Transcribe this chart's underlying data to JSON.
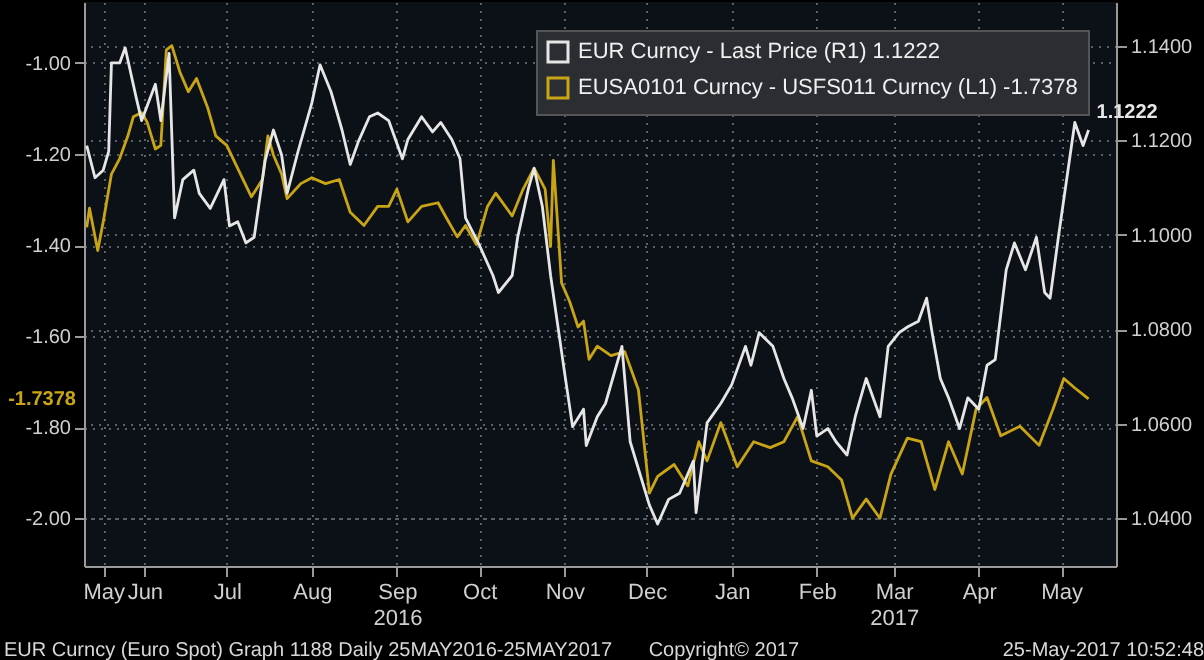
{
  "chart_data": {
    "type": "line",
    "annotations": [
      "EUR Curncy (Euro Spot) Graph 1188  Daily 25MAY2016-25MAY2017",
      "Copyright© 2017",
      "25-May-2017 10:52:48",
      "-1.7378"
    ],
    "xlim": [
      "2016-05-24",
      "2017-06-04"
    ],
    "xticks": [
      {
        "value": "2016-05-31",
        "label": "May"
      },
      {
        "value": "2016-06-15",
        "label": "Jun"
      },
      {
        "value": "2016-07-15",
        "label": "Jul"
      },
      {
        "value": "2016-08-15",
        "label": "Aug"
      },
      {
        "value": "2016-09-15",
        "label": "Sep\n2016"
      },
      {
        "value": "2016-10-15",
        "label": "Oct"
      },
      {
        "value": "2016-11-15",
        "label": "Nov"
      },
      {
        "value": "2016-12-15",
        "label": "Dec"
      },
      {
        "value": "2017-01-15",
        "label": "Jan"
      },
      {
        "value": "2017-02-15",
        "label": "Feb"
      },
      {
        "value": "2017-03-15",
        "label": "Mar\n2017"
      },
      {
        "value": "2017-04-15",
        "label": "Apr"
      },
      {
        "value": "2017-05-15",
        "label": "May"
      }
    ],
    "ylim": [
      -2.105,
      -0.866
    ],
    "yticks": [
      {
        "value": -1.0,
        "label": "-1.00"
      },
      {
        "value": -1.2,
        "label": "-1.20"
      },
      {
        "value": -1.4,
        "label": "-1.40"
      },
      {
        "value": -1.6,
        "label": "-1.60"
      },
      {
        "value": -1.8,
        "label": "-1.80"
      },
      {
        "value": -2.0,
        "label": "-2.00"
      }
    ],
    "y2lim": [
      1.0299,
      1.1493
    ],
    "y2ticks": [
      {
        "value": 1.14,
        "label": "1.1400"
      },
      {
        "value": 1.12,
        "label": "1.1200"
      },
      {
        "value": 1.1,
        "label": "1.1000"
      },
      {
        "value": 1.08,
        "label": "1.0800"
      },
      {
        "value": 1.06,
        "label": "1.0600"
      },
      {
        "value": 1.04,
        "label": "1.0400"
      }
    ],
    "grid": true,
    "legend": "top right",
    "line_style": "solid",
    "marker": "none",
    "series": [
      {
        "name": "EUR Curncy - Last Price (R1)  1.1222",
        "color": "#e6e6e6",
        "axis": "y2",
        "x": [
          "2016-05-25",
          "2016-05-28",
          "2016-05-31",
          "2016-06-02",
          "2016-06-03",
          "2016-06-06",
          "2016-06-08",
          "2016-06-12",
          "2016-06-14",
          "2016-06-19",
          "2016-06-21",
          "2016-06-24",
          "2016-06-26",
          "2016-06-29",
          "2016-07-03",
          "2016-07-05",
          "2016-07-09",
          "2016-07-14",
          "2016-07-16",
          "2016-07-19",
          "2016-07-22",
          "2016-07-25",
          "2016-07-29",
          "2016-08-01",
          "2016-08-04",
          "2016-08-06",
          "2016-08-10",
          "2016-08-15",
          "2016-08-18",
          "2016-08-22",
          "2016-08-26",
          "2016-08-29",
          "2016-09-01",
          "2016-09-05",
          "2016-09-08",
          "2016-09-12",
          "2016-09-17",
          "2016-09-19",
          "2016-09-24",
          "2016-09-28",
          "2016-10-01",
          "2016-10-05",
          "2016-10-08",
          "2016-10-10",
          "2016-10-15",
          "2016-10-20",
          "2016-10-22",
          "2016-10-27",
          "2016-10-29",
          "2016-11-02",
          "2016-11-04",
          "2016-11-07",
          "2016-11-10",
          "2016-11-15",
          "2016-11-18",
          "2016-11-22",
          "2016-11-23",
          "2016-11-27",
          "2016-11-30",
          "2016-12-06",
          "2016-12-09",
          "2016-12-16",
          "2016-12-19",
          "2016-12-23",
          "2016-12-27",
          "2017-01-01",
          "2017-01-02",
          "2017-01-06",
          "2017-01-11",
          "2017-01-15",
          "2017-01-20",
          "2017-01-22",
          "2017-01-25",
          "2017-01-30",
          "2017-02-03",
          "2017-02-06",
          "2017-02-10",
          "2017-02-13",
          "2017-02-15",
          "2017-02-19",
          "2017-02-22",
          "2017-02-26",
          "2017-03-01",
          "2017-03-05",
          "2017-03-10",
          "2017-03-13",
          "2017-03-17",
          "2017-03-20",
          "2017-03-24",
          "2017-03-27",
          "2017-03-29",
          "2017-04-01",
          "2017-04-04",
          "2017-04-08",
          "2017-04-11",
          "2017-04-15",
          "2017-04-18",
          "2017-04-21",
          "2017-04-25",
          "2017-04-28",
          "2017-05-02",
          "2017-05-06",
          "2017-05-09",
          "2017-05-11",
          "2017-05-14",
          "2017-05-18",
          "2017-05-20",
          "2017-05-23",
          "2017-05-25"
        ],
        "values": [
          1.1189,
          1.1121,
          1.1137,
          1.1177,
          1.1364,
          1.1364,
          1.1396,
          1.1291,
          1.1242,
          1.1319,
          1.1242,
          1.1384,
          1.1036,
          1.1117,
          1.1137,
          1.1088,
          1.1056,
          1.1117,
          1.1019,
          1.1028,
          1.0983,
          1.0995,
          1.1157,
          1.1222,
          1.1169,
          1.1088,
          1.1177,
          1.1279,
          1.136,
          1.1303,
          1.1222,
          1.1149,
          1.1198,
          1.125,
          1.1258,
          1.1242,
          1.1161,
          1.1202,
          1.125,
          1.1218,
          1.1238,
          1.1202,
          1.1161,
          1.1036,
          1.0979,
          1.0914,
          1.0878,
          1.0914,
          1.0995,
          1.11,
          1.1141,
          1.106,
          1.0914,
          1.0712,
          1.0594,
          1.0631,
          1.0554,
          1.0615,
          1.0643,
          1.0764,
          1.0562,
          1.0428,
          1.0388,
          1.044,
          1.0453,
          1.0521,
          1.0412,
          1.0602,
          1.0643,
          1.0683,
          1.0764,
          1.0724,
          1.0793,
          1.0764,
          1.0696,
          1.0655,
          1.059,
          1.0671,
          1.0574,
          1.059,
          1.0562,
          1.0534,
          1.0615,
          1.0696,
          1.0615,
          1.0764,
          1.0793,
          1.0805,
          1.0817,
          1.0866,
          1.0793,
          1.0696,
          1.0655,
          1.059,
          1.0655,
          1.0631,
          1.0724,
          1.0736,
          1.0926,
          1.0983,
          1.0926,
          1.0995,
          1.0878,
          1.0866,
          1.0995,
          1.1157,
          1.1238,
          1.1189,
          1.1222
        ],
        "value_labels": [
          null,
          null,
          null,
          null,
          null,
          null,
          null,
          null,
          null,
          null,
          null,
          null,
          null,
          null,
          null,
          null,
          null,
          null,
          null,
          null,
          null,
          null,
          null,
          null,
          null,
          null,
          null,
          null,
          null,
          null,
          null,
          null,
          null,
          null,
          null,
          null,
          null,
          null,
          null,
          null,
          null,
          null,
          null,
          null,
          null,
          null,
          null,
          null,
          null,
          null,
          null,
          null,
          null,
          null,
          null,
          null,
          null,
          null,
          null,
          null,
          null,
          null,
          null,
          null,
          null,
          null,
          null,
          null,
          null,
          null,
          null,
          null,
          null,
          null,
          null,
          null,
          null,
          null,
          null,
          null,
          null,
          null,
          null,
          null,
          null,
          null,
          null,
          null,
          null,
          null,
          null,
          null,
          null,
          null,
          null,
          null,
          null,
          null,
          null,
          null,
          null,
          null,
          null,
          null,
          null,
          null,
          null,
          null,
          "1.1222"
        ]
      },
      {
        "name": "EUSA0101 Curncy - USFS011 Curncy (L1) -1.7378",
        "color": "#c9a516",
        "axis": "y",
        "x": [
          "2016-05-25",
          "2016-05-26",
          "2016-05-29",
          "2016-05-31",
          "2016-06-03",
          "2016-06-06",
          "2016-06-09",
          "2016-06-11",
          "2016-06-14",
          "2016-06-16",
          "2016-06-19",
          "2016-06-21",
          "2016-06-23",
          "2016-06-25",
          "2016-06-28",
          "2016-07-01",
          "2016-07-04",
          "2016-07-08",
          "2016-07-11",
          "2016-07-15",
          "2016-07-20",
          "2016-07-24",
          "2016-07-28",
          "2016-07-30",
          "2016-08-01",
          "2016-08-04",
          "2016-08-06",
          "2016-08-11",
          "2016-08-15",
          "2016-08-20",
          "2016-08-25",
          "2016-08-29",
          "2016-09-03",
          "2016-09-08",
          "2016-09-12",
          "2016-09-15",
          "2016-09-19",
          "2016-09-24",
          "2016-09-30",
          "2016-10-03",
          "2016-10-07",
          "2016-10-10",
          "2016-10-14",
          "2016-10-18",
          "2016-10-21",
          "2016-10-27",
          "2016-10-31",
          "2016-11-04",
          "2016-11-08",
          "2016-11-10",
          "2016-11-11",
          "2016-11-14",
          "2016-11-17",
          "2016-11-20",
          "2016-11-22",
          "2016-11-24",
          "2016-11-27",
          "2016-12-02",
          "2016-12-07",
          "2016-12-12",
          "2016-12-16",
          "2016-12-19",
          "2016-12-25",
          "2016-12-30",
          "2017-01-03",
          "2017-01-06",
          "2017-01-11",
          "2017-01-17",
          "2017-01-23",
          "2017-01-29",
          "2017-02-03",
          "2017-02-08",
          "2017-02-13",
          "2017-02-19",
          "2017-02-24",
          "2017-02-28",
          "2017-03-05",
          "2017-03-10",
          "2017-03-14",
          "2017-03-20",
          "2017-03-25",
          "2017-03-30",
          "2017-04-04",
          "2017-04-09",
          "2017-04-14",
          "2017-04-18",
          "2017-04-23",
          "2017-04-30",
          "2017-05-07",
          "2017-05-12",
          "2017-05-16",
          "2017-05-20",
          "2017-05-25"
        ],
        "values": [
          -1.361,
          -1.319,
          -1.412,
          -1.349,
          -1.244,
          -1.21,
          -1.16,
          -1.118,
          -1.109,
          -1.13,
          -1.189,
          -1.181,
          -0.971,
          -0.962,
          -1.021,
          -1.063,
          -1.034,
          -1.097,
          -1.16,
          -1.181,
          -1.244,
          -1.294,
          -1.256,
          -1.16,
          -1.202,
          -1.244,
          -1.298,
          -1.265,
          -1.252,
          -1.265,
          -1.256,
          -1.328,
          -1.357,
          -1.315,
          -1.315,
          -1.277,
          -1.349,
          -1.315,
          -1.307,
          -1.34,
          -1.382,
          -1.357,
          -1.399,
          -1.315,
          -1.286,
          -1.336,
          -1.277,
          -1.231,
          -1.277,
          -1.403,
          -1.214,
          -1.483,
          -1.525,
          -1.58,
          -1.567,
          -1.651,
          -1.622,
          -1.643,
          -1.634,
          -1.718,
          -1.945,
          -1.908,
          -1.882,
          -1.929,
          -1.832,
          -1.874,
          -1.79,
          -1.887,
          -1.832,
          -1.845,
          -1.832,
          -1.777,
          -1.874,
          -1.887,
          -1.916,
          -2.0,
          -1.958,
          -2.0,
          -1.903,
          -1.824,
          -1.832,
          -1.937,
          -1.832,
          -1.903,
          -1.761,
          -1.735,
          -1.819,
          -1.798,
          -1.84,
          -1.761,
          -1.693,
          -1.714,
          -1.7378
        ]
      }
    ]
  }
}
